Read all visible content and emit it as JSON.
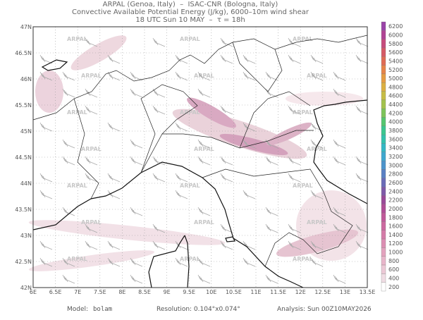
{
  "header": {
    "lines": [
      "ARPAL (Genoa, Italy)  –  ISAC-CNR (Bologna, Italy)",
      "Convective Available Potential Energy (J/kg), 6000–10m wind shear",
      "18 UTC Sun 10 MAY  –  τ = 18h"
    ]
  },
  "axes": {
    "x_labels": [
      "6E",
      "6.5E",
      "7E",
      "7.5E",
      "8E",
      "8.5E",
      "9E",
      "9.5E",
      "10E",
      "10.5E",
      "11E",
      "11.5E",
      "12E",
      "12.5E",
      "13E",
      "13.5E"
    ],
    "y_labels": [
      "47N",
      "46.5N",
      "46N",
      "45.5N",
      "45N",
      "44.5N",
      "44N",
      "43.5N",
      "43N",
      "42.5N",
      "42N"
    ]
  },
  "watermark": "ARPAL",
  "colorbar": {
    "labels": [
      6200,
      6000,
      5800,
      5600,
      5400,
      5200,
      5000,
      4800,
      4600,
      4400,
      4200,
      4000,
      3800,
      3600,
      3400,
      3200,
      3000,
      2800,
      2600,
      2400,
      2200,
      2000,
      1800,
      1600,
      1400,
      1200,
      1000,
      800,
      600,
      400,
      200
    ],
    "colors": [
      "#9a44a8",
      "#b04494",
      "#c64c7c",
      "#d55a66",
      "#e06c55",
      "#e6844a",
      "#e59c44",
      "#dcb042",
      "#c6bd46",
      "#a3c24d",
      "#7dc45a",
      "#55c66f",
      "#3cc68f",
      "#33c2ab",
      "#34b8c4",
      "#3fa8cf",
      "#4d94cc",
      "#5a80c4",
      "#6a6cb8",
      "#7f5aa8",
      "#9a4a98",
      "#b04e96",
      "#c05a9a",
      "#cc69a0",
      "#d47ca8",
      "#dc8fb3",
      "#e3a3be",
      "#e8b6ca",
      "#ecc9d6",
      "#f0dde4",
      "#ffffff"
    ]
  },
  "footer": {
    "model_label": "Model:",
    "model": "bolam",
    "resolution": "Resolution: 0.104°x0.074°",
    "analysis": "Analysis: Sun 00Z10MAY2026"
  }
}
